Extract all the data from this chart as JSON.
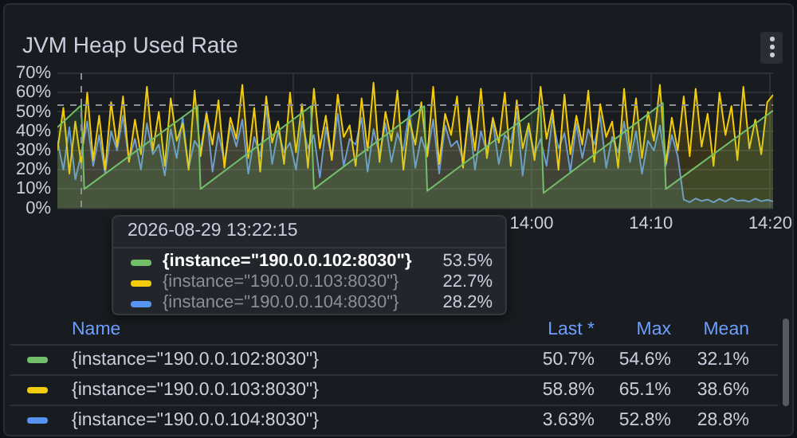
{
  "chart_data": {
    "type": "area",
    "title": "JVM Heap Used Rate",
    "x": [
      "2026-08-29T13:20:15",
      "2026-08-29T13:20:45",
      "2026-08-29T13:21:15",
      "2026-08-29T13:21:45",
      "2026-08-29T13:22:15",
      "2026-08-29T13:22:45",
      "2026-08-29T13:23:15",
      "2026-08-29T13:23:45",
      "2026-08-29T13:24:15",
      "2026-08-29T13:24:45",
      "2026-08-29T13:25:15",
      "2026-08-29T13:25:45",
      "2026-08-29T13:26:15",
      "2026-08-29T13:26:45",
      "2026-08-29T13:27:15",
      "2026-08-29T13:27:45",
      "2026-08-29T13:28:15",
      "2026-08-29T13:28:45",
      "2026-08-29T13:29:15",
      "2026-08-29T13:29:45",
      "2026-08-29T13:30:15",
      "2026-08-29T13:30:45",
      "2026-08-29T13:31:15",
      "2026-08-29T13:31:45",
      "2026-08-29T13:32:15",
      "2026-08-29T13:32:45",
      "2026-08-29T13:33:15",
      "2026-08-29T13:33:45",
      "2026-08-29T13:34:15",
      "2026-08-29T13:34:45",
      "2026-08-29T13:35:15",
      "2026-08-29T13:35:45",
      "2026-08-29T13:36:15",
      "2026-08-29T13:36:45",
      "2026-08-29T13:37:15",
      "2026-08-29T13:37:45",
      "2026-08-29T13:38:15",
      "2026-08-29T13:38:45",
      "2026-08-29T13:39:15",
      "2026-08-29T13:39:45",
      "2026-08-29T13:40:15",
      "2026-08-29T13:40:45",
      "2026-08-29T13:41:15",
      "2026-08-29T13:41:45",
      "2026-08-29T13:42:15",
      "2026-08-29T13:42:45",
      "2026-08-29T13:43:15",
      "2026-08-29T13:43:45",
      "2026-08-29T13:44:15",
      "2026-08-29T13:44:45",
      "2026-08-29T13:45:15",
      "2026-08-29T13:45:45",
      "2026-08-29T13:46:15",
      "2026-08-29T13:46:45",
      "2026-08-29T13:47:15",
      "2026-08-29T13:47:45",
      "2026-08-29T13:48:15",
      "2026-08-29T13:48:45",
      "2026-08-29T13:49:15",
      "2026-08-29T13:49:45",
      "2026-08-29T13:50:15",
      "2026-08-29T13:50:45",
      "2026-08-29T13:51:15",
      "2026-08-29T13:51:45",
      "2026-08-29T13:52:15",
      "2026-08-29T13:52:45",
      "2026-08-29T13:53:15",
      "2026-08-29T13:53:45",
      "2026-08-29T13:54:15",
      "2026-08-29T13:54:45",
      "2026-08-29T13:55:15",
      "2026-08-29T13:55:45",
      "2026-08-29T13:56:15",
      "2026-08-29T13:56:45",
      "2026-08-29T13:57:15",
      "2026-08-29T13:57:45",
      "2026-08-29T13:58:15",
      "2026-08-29T13:58:45",
      "2026-08-29T13:59:15",
      "2026-08-29T13:59:45",
      "2026-08-29T14:00:15",
      "2026-08-29T14:00:45",
      "2026-08-29T14:01:15",
      "2026-08-29T14:01:45",
      "2026-08-29T14:02:15",
      "2026-08-29T14:02:45",
      "2026-08-29T14:03:15",
      "2026-08-29T14:03:45",
      "2026-08-29T14:04:15",
      "2026-08-29T14:04:45",
      "2026-08-29T14:05:15",
      "2026-08-29T14:05:45",
      "2026-08-29T14:06:15",
      "2026-08-29T14:06:45",
      "2026-08-29T14:07:15",
      "2026-08-29T14:07:45",
      "2026-08-29T14:08:15",
      "2026-08-29T14:08:45",
      "2026-08-29T14:09:15",
      "2026-08-29T14:09:45",
      "2026-08-29T14:10:15",
      "2026-08-29T14:10:45",
      "2026-08-29T14:11:15",
      "2026-08-29T14:11:45",
      "2026-08-29T14:12:15",
      "2026-08-29T14:12:45",
      "2026-08-29T14:13:15",
      "2026-08-29T14:13:45",
      "2026-08-29T14:14:15",
      "2026-08-29T14:14:45",
      "2026-08-29T14:15:15",
      "2026-08-29T14:15:45",
      "2026-08-29T14:16:15",
      "2026-08-29T14:16:45",
      "2026-08-29T14:17:15",
      "2026-08-29T14:17:45",
      "2026-08-29T14:18:15",
      "2026-08-29T14:18:45",
      "2026-08-29T14:19:15",
      "2026-08-29T14:19:45",
      "2026-08-29T14:20:15"
    ],
    "series": [
      {
        "name": "{instance=\"190.0.0.102:8030\"}",
        "color": "#73bf69",
        "x": [
          "2026-08-29T13:20:15",
          "2026-08-29T13:22:15",
          "2026-08-29T13:22:30",
          "2026-08-29T13:32:00",
          "2026-08-29T13:32:15",
          "2026-08-29T13:41:30",
          "2026-08-29T13:41:45",
          "2026-08-29T13:51:00",
          "2026-08-29T13:51:15",
          "2026-08-29T14:00:45",
          "2026-08-29T14:01:00",
          "2026-08-29T14:11:00",
          "2026-08-29T14:11:15",
          "2026-08-29T14:20:15"
        ],
        "values": [
          42,
          53.5,
          10,
          53,
          10,
          53,
          10,
          53,
          9,
          53,
          8,
          54.6,
          10,
          50.7
        ]
      },
      {
        "name": "{instance=\"190.0.0.103:8030\"}",
        "color": "#f2cc0c",
        "values": [
          30,
          52,
          18,
          45,
          22.7,
          60,
          25,
          48,
          20,
          55,
          32,
          58,
          24,
          46,
          28,
          63,
          30,
          50,
          22,
          57,
          35,
          44,
          20,
          61,
          27,
          49,
          33,
          56,
          21,
          47,
          36,
          64,
          26,
          52,
          19,
          58,
          34,
          45,
          23,
          60,
          29,
          54,
          21,
          62,
          31,
          48,
          25,
          59,
          37,
          43,
          22,
          57,
          30,
          65.1,
          24,
          50,
          35,
          61,
          20,
          46,
          33,
          55,
          27,
          63,
          23,
          49,
          38,
          58,
          21,
          52,
          30,
          62,
          26,
          47,
          34,
          60,
          22,
          56,
          31,
          44,
          25,
          63,
          36,
          51,
          20,
          59,
          28,
          48,
          33,
          61,
          24,
          54,
          37,
          45,
          21,
          62,
          29,
          57,
          26,
          50,
          35,
          64,
          23,
          47,
          30,
          58,
          27,
          62,
          32,
          49,
          22,
          60,
          38,
          53,
          25,
          63,
          31,
          46,
          28,
          55,
          58.8
        ]
      },
      {
        "name": "{instance=\"190.0.0.104:8030\"}",
        "color": "#5794f2",
        "values": [
          35,
          20,
          42,
          15,
          28.2,
          45,
          22,
          38,
          18,
          40,
          30,
          48,
          25,
          36,
          20,
          44,
          28,
          33,
          17,
          41,
          26,
          47,
          21,
          35,
          30,
          50,
          19,
          39,
          24,
          43,
          32,
          46,
          18,
          37,
          27,
          52.8,
          23,
          40,
          29,
          34,
          20,
          45,
          31,
          38,
          16,
          42,
          26,
          49,
          22,
          36,
          33,
          47,
          19,
          41,
          28,
          44,
          24,
          39,
          30,
          51,
          21,
          37,
          27,
          46,
          18,
          43,
          32,
          35,
          25,
          48,
          20,
          40,
          29,
          45,
          23,
          38,
          34,
          50,
          17,
          42,
          28,
          36,
          22,
          47,
          31,
          39,
          19,
          44,
          26,
          41,
          33,
          48,
          21,
          37,
          29,
          45,
          24,
          40,
          18,
          35,
          30,
          43,
          22,
          38,
          27,
          4.5,
          3.2,
          5.1,
          3.8,
          4.6,
          3.1,
          4.9,
          3.5,
          5.3,
          3.9,
          4.2,
          3.4,
          5.0,
          3.7,
          4.4,
          3.6
        ]
      }
    ],
    "xlim": [
      "2026-08-29T13:20:15",
      "2026-08-29T14:20:15"
    ],
    "xticks": [
      {
        "value": "2026-08-29T13:30",
        "label": null
      },
      {
        "value": "2026-08-29T13:40",
        "label": null
      },
      {
        "value": "2026-08-29T13:50",
        "label": null
      },
      {
        "value": "2026-08-29T14:00",
        "label": "14:00"
      },
      {
        "value": "2026-08-29T14:10",
        "label": "14:10"
      },
      {
        "value": "2026-08-29T14:20",
        "label": "14:20"
      }
    ],
    "ylim": [
      0,
      70
    ],
    "yticks": [
      {
        "value": 0,
        "label": "0%"
      },
      {
        "value": 10,
        "label": "10%"
      },
      {
        "value": 20,
        "label": "20%"
      },
      {
        "value": 30,
        "label": "30%"
      },
      {
        "value": 40,
        "label": "40%"
      },
      {
        "value": 50,
        "label": "50%"
      },
      {
        "value": 60,
        "label": "60%"
      },
      {
        "value": 70,
        "label": "70%"
      }
    ],
    "grid": true,
    "legend": "bottom",
    "marker": "none",
    "line_style": "solid",
    "ref_lines": [
      {
        "axis": "x",
        "value": "2026-08-29T13:22:15",
        "label": null,
        "color": "#8e8e98",
        "line_style": "dashed"
      },
      {
        "axis": "y",
        "value": 53.5,
        "label": null,
        "color": "#8e8e98",
        "line_style": "dashed"
      }
    ],
    "annotations": [
      "2026-08-29 13:22:15",
      "53.5%",
      "22.7%",
      "28.2%",
      "Name",
      "Last *",
      "Max",
      "Mean",
      "50.7%",
      "54.6%",
      "32.1%",
      "58.8%",
      "65.1%",
      "38.6%",
      "3.63%",
      "52.8%",
      "28.8%"
    ]
  }
}
